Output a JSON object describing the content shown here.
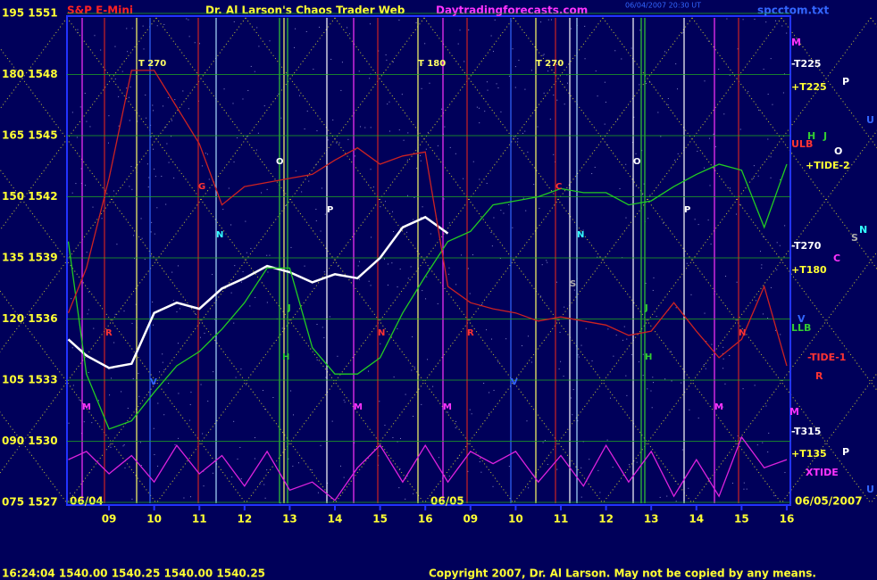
{
  "chart_data": {
    "type": "line",
    "title": "Dr. Al Larson's Chaos Trader Web",
    "symbol": "S&P E-Mini",
    "site": "Daytradingforecasts.com",
    "timestamp": "06/04/2007 20:30 UT",
    "file": "spcctom.txt",
    "status": "16:24:04  1540.00  1540.25  1540.00  1540.25",
    "copyright": "Copyright 2007, Dr. Al Larson. May not be copied by any means.",
    "dates": [
      "06/04",
      "06/05",
      "06/05/2007"
    ],
    "x": [
      8.1,
      8.5,
      9,
      9.5,
      10,
      10.5,
      11,
      11.5,
      12,
      12.5,
      13,
      13.5,
      14,
      14.5,
      15,
      15.5,
      16,
      16.5,
      17,
      17.5,
      18,
      18.5,
      19,
      19.5,
      20,
      20.5,
      21,
      21.5,
      22,
      22.5,
      23,
      23.5,
      24
    ],
    "series": [
      {
        "color": "#ffffff",
        "values": [
          1535,
          1534.2,
          1533.6,
          1533.8,
          1536.3,
          1536.8,
          1536.5,
          1537.5,
          1538,
          1538.6,
          1538.3,
          1537.8,
          1538.2,
          1538,
          1539,
          1540.5,
          1541,
          1540.2,
          null,
          null,
          null,
          null,
          null,
          null,
          null,
          null,
          null,
          null,
          null,
          null,
          null,
          null,
          null
        ]
      },
      {
        "color": "#22cc22",
        "values": [
          1539.8,
          1533.3,
          1530.6,
          1531,
          1532.4,
          1533.7,
          1534.4,
          1535.5,
          1536.8,
          1538.5,
          1538.5,
          1534.6,
          1533.3,
          1533.3,
          1534.1,
          1536.3,
          1538.1,
          1539.8,
          1540.3,
          1541.6,
          1541.8,
          1542,
          1542.4,
          1542.2,
          1542.2,
          1541.6,
          1541.8,
          1542.5,
          1543.1,
          1543.6,
          1543.3,
          1540.5,
          1543.6
        ]
      },
      {
        "color": "#cc2222",
        "values": [
          1536.3,
          1538.5,
          1542.9,
          1548.2,
          1548.2,
          1546.4,
          1544.6,
          1541.6,
          1542.5,
          1542.7,
          1542.9,
          1543.1,
          1543.8,
          1544.4,
          1543.6,
          1544,
          1544.2,
          1537.6,
          1536.8,
          1536.5,
          1536.3,
          1535.9,
          1536.1,
          1535.9,
          1535.7,
          1535.2,
          1535.4,
          1536.8,
          1535.4,
          1534.1,
          1535,
          1537.6,
          1533.7
        ]
      },
      {
        "color": "#dd22dd",
        "values": [
          1529.1,
          1529.5,
          1528.4,
          1529.3,
          1528,
          1529.8,
          1528.4,
          1529.3,
          1527.8,
          1529.5,
          1527.6,
          1528,
          1527.1,
          1528.7,
          1529.8,
          1528,
          1529.8,
          1528,
          1529.5,
          1528.9,
          1529.5,
          1528,
          1529.3,
          1527.8,
          1529.8,
          1528,
          1529.5,
          1527.3,
          1529.1,
          1527.3,
          1530.2,
          1528.7,
          1529.1
        ]
      }
    ],
    "xlim": [
      8.07,
      24.08
    ],
    "xticks": [
      {
        "value": 9,
        "label": "09"
      },
      10,
      11,
      12,
      13,
      14,
      15,
      16,
      {
        "value": 17,
        "label": "09"
      },
      {
        "value": 18,
        "label": "10"
      },
      {
        "value": 19,
        "label": "11"
      },
      {
        "value": 20,
        "label": "12"
      },
      {
        "value": 21,
        "label": "13"
      },
      {
        "value": 22,
        "label": "14"
      },
      {
        "value": 23,
        "label": "15"
      },
      {
        "value": 24,
        "label": "16"
      }
    ],
    "ylim": [
      1527,
      1551
    ],
    "yticks": [
      {
        "value": 1551,
        "label": "195 1551"
      },
      {
        "value": 1548,
        "label": "180 1548"
      },
      {
        "value": 1545,
        "label": "165 1545"
      },
      {
        "value": 1542,
        "label": "150 1542"
      },
      {
        "value": 1539,
        "label": "135 1539"
      },
      {
        "value": 1536,
        "label": "120 1536"
      },
      {
        "value": 1533,
        "label": "105 1533"
      },
      {
        "value": 1530,
        "label": "090 1530"
      },
      {
        "value": 1527,
        "label": "075 1527"
      }
    ],
    "grid": true,
    "plot_labels": [
      {
        "text": "T 270",
        "color": "#ffff66"
      },
      {
        "text": "T 180",
        "color": "#ffff66"
      },
      {
        "text": "T 270",
        "color": "#ffff66"
      },
      {
        "text": "O",
        "color": "#ffffff"
      },
      {
        "text": "O",
        "color": "#ffffff"
      },
      {
        "text": "G",
        "color": "#ff3333"
      },
      {
        "text": "C",
        "color": "#ff3333"
      },
      {
        "text": "P",
        "color": "#ffffff"
      },
      {
        "text": "P",
        "color": "#ffffff"
      },
      {
        "text": "N",
        "color": "#33ffff"
      },
      {
        "text": "N",
        "color": "#33ffff"
      },
      {
        "text": "J",
        "color": "#33cc33"
      },
      {
        "text": "J",
        "color": "#33cc33"
      },
      {
        "text": "H",
        "color": "#33cc33"
      },
      {
        "text": "H",
        "color": "#33cc33"
      },
      {
        "text": "R",
        "color": "#ff3333"
      },
      {
        "text": "R",
        "color": "#ff3333"
      },
      {
        "text": "N",
        "color": "#ff3333"
      },
      {
        "text": "N",
        "color": "#ff3333"
      },
      {
        "text": "V",
        "color": "#3366ff"
      },
      {
        "text": "V",
        "color": "#3366ff"
      },
      {
        "text": "M",
        "color": "#ff33ff"
      },
      {
        "text": "M",
        "color": "#ff33ff"
      },
      {
        "text": "M",
        "color": "#ff33ff"
      },
      {
        "text": "M",
        "color": "#ff33ff"
      },
      {
        "text": "S",
        "color": "#aaaaaa"
      }
    ],
    "side_labels": [
      {
        "text": "M",
        "color": "#ff33ff"
      },
      {
        "text": "-T225",
        "color": "#ffffff"
      },
      {
        "text": "+T225",
        "color": "#ffff33"
      },
      {
        "text": "ULB",
        "color": "#ff3333"
      },
      {
        "text": "H",
        "color": "#33cc33"
      },
      {
        "text": "J",
        "color": "#33cc33"
      },
      {
        "text": "O",
        "color": "#ffffff"
      },
      {
        "text": "+TIDE-2",
        "color": "#ffff33"
      },
      {
        "text": "-T270",
        "color": "#ffffff"
      },
      {
        "text": "+T180",
        "color": "#ffff33"
      },
      {
        "text": "LLB",
        "color": "#33cc33"
      },
      {
        "text": "V",
        "color": "#3366ff"
      },
      {
        "text": "-TIDE-1",
        "color": "#ff3333"
      },
      {
        "text": "R",
        "color": "#ff3333"
      },
      {
        "text": "M",
        "color": "#ff33ff"
      },
      {
        "text": "-T315",
        "color": "#ffffff"
      },
      {
        "text": "+T135",
        "color": "#ffff33"
      },
      {
        "text": "XTIDE",
        "color": "#ff33ff"
      },
      {
        "text": "P",
        "color": "#ffffff"
      },
      {
        "text": "U",
        "color": "#3366ff"
      },
      {
        "text": "N",
        "color": "#33ffff"
      },
      {
        "text": "S",
        "color": "#aaaaaa"
      },
      {
        "text": "C",
        "color": "#ff33ff"
      },
      {
        "text": "P",
        "color": "#ffffff"
      },
      {
        "text": "U",
        "color": "#3366ff"
      }
    ]
  }
}
